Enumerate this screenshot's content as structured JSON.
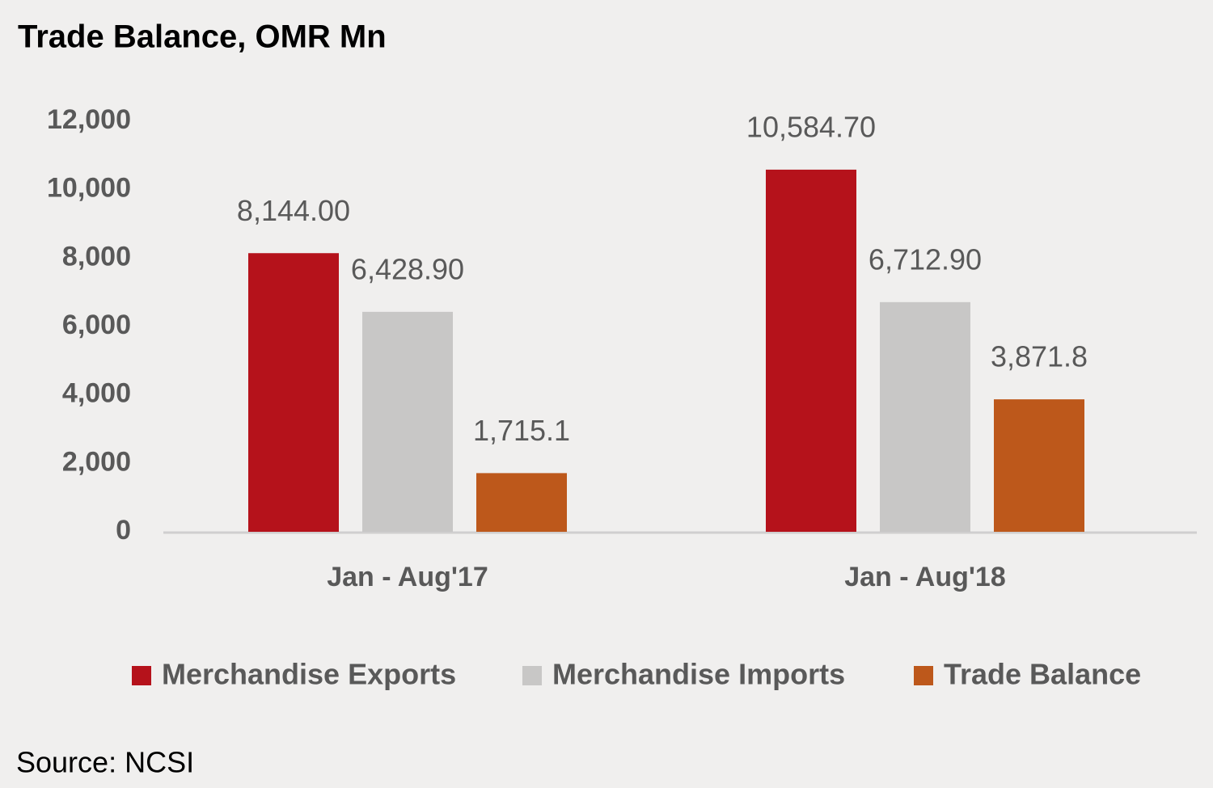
{
  "chart_data": {
    "type": "bar",
    "title": "Trade Balance, OMR Mn",
    "categories": [
      "Jan - Aug'17",
      "Jan - Aug'18"
    ],
    "series": [
      {
        "name": "Merchandise Exports",
        "color": "#b5121b",
        "values": [
          8144.0,
          10584.7
        ],
        "value_labels": [
          "8,144.00",
          "10,584.70"
        ]
      },
      {
        "name": "Merchandise Imports",
        "color": "#c8c7c6",
        "values": [
          6428.9,
          6712.9
        ],
        "value_labels": [
          "6,428.90",
          "6,712.90"
        ]
      },
      {
        "name": "Trade Balance",
        "color": "#bd581b",
        "values": [
          1715.1,
          3871.8
        ],
        "value_labels": [
          "1,715.1",
          "3,871.8"
        ]
      }
    ],
    "ylim": [
      0,
      12000
    ],
    "yticks": [
      0,
      {
        "value": 2000,
        "label": "2,000"
      },
      {
        "value": 4000,
        "label": "4,000"
      },
      {
        "value": 6000,
        "label": "6,000"
      },
      {
        "value": 8000,
        "label": "8,000"
      },
      {
        "value": 10000,
        "label": "10,000"
      },
      {
        "value": 12000,
        "label": "12,000"
      }
    ],
    "grid": false,
    "legend": "bottom",
    "source": "Source: NCSI"
  }
}
